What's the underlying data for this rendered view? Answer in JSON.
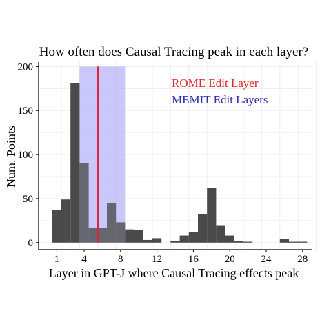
{
  "chart_data": {
    "type": "bar",
    "title": "How often does Causal Tracing peak in each layer?",
    "xlabel": "Layer in GPT-J where Causal Tracing effects peak",
    "ylabel": "Num. Points",
    "x_ticks": [
      1,
      4,
      8,
      12,
      16,
      20,
      24,
      28
    ],
    "y_ticks": [
      0,
      50,
      100,
      150,
      200
    ],
    "xlim": [
      -0.5,
      29.5
    ],
    "ylim": [
      -8,
      205
    ],
    "grid": true,
    "layers": [
      1,
      2,
      3,
      4,
      5,
      6,
      7,
      8,
      9,
      10,
      11,
      12,
      13,
      14,
      15,
      16,
      17,
      18,
      19,
      20,
      21,
      22,
      23,
      24,
      25,
      26,
      27,
      28
    ],
    "values": [
      37,
      49,
      181,
      90,
      17,
      17,
      45,
      23,
      15,
      14,
      3,
      5,
      0,
      2,
      8,
      12,
      32,
      62,
      19,
      8,
      2,
      1,
      0,
      0,
      0,
      4,
      1,
      1
    ],
    "bar_color": "#4a4a4a",
    "memit_band": {
      "from": 4,
      "to": 8,
      "ymax": 200
    },
    "rome_layer": 6,
    "legend": [
      {
        "label": "ROME Edit Layer",
        "color": "#dd2a2a"
      },
      {
        "label": "MEMIT Edit Layers",
        "color": "#3030b0"
      }
    ],
    "band_color": "#b8b4f8",
    "line_color": "#d8263a"
  }
}
